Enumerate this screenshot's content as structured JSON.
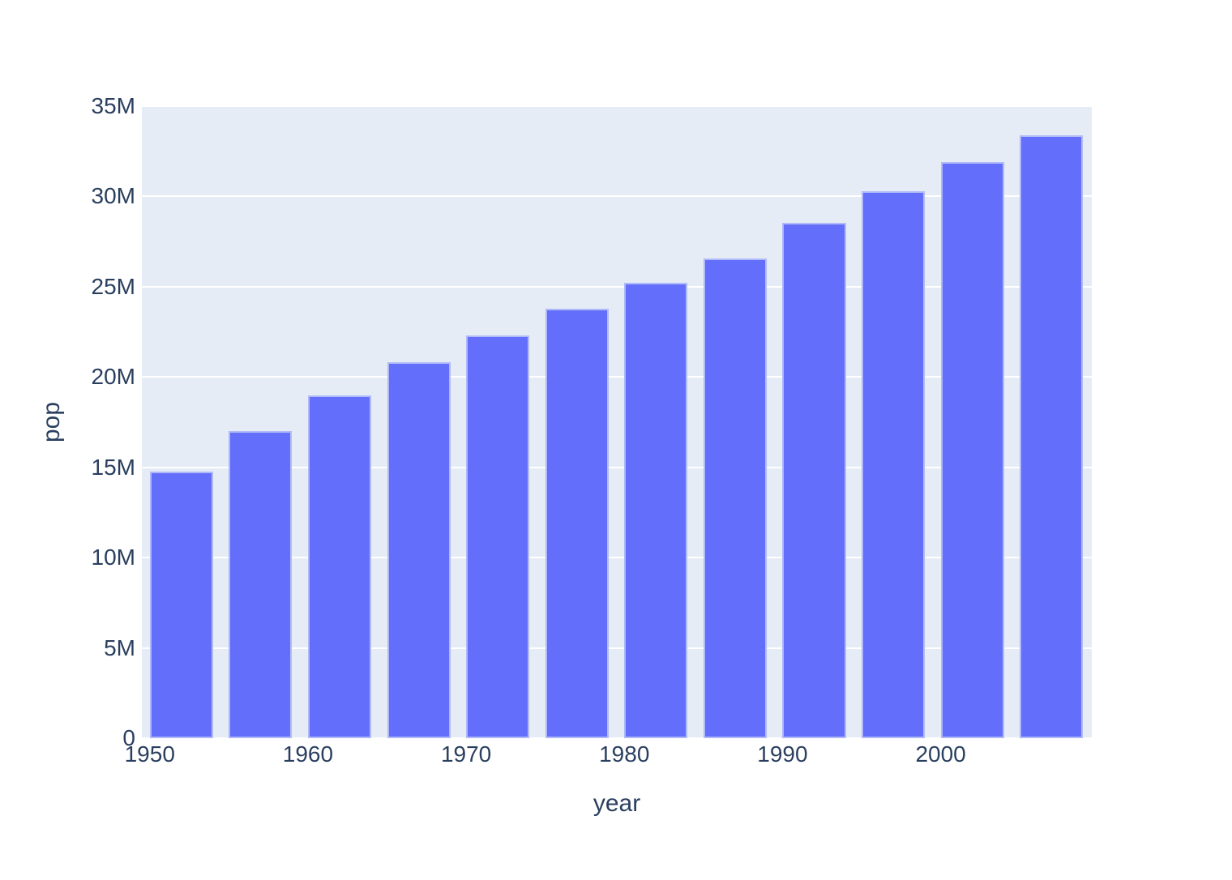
{
  "chart_data": {
    "type": "bar",
    "title": "",
    "xlabel": "year",
    "ylabel": "pop",
    "x": [
      1952,
      1957,
      1962,
      1967,
      1972,
      1977,
      1982,
      1987,
      1992,
      1997,
      2002,
      2007
    ],
    "values": [
      14785584,
      17010154,
      18985849,
      20819767,
      22284500,
      23796400,
      25201900,
      26549700,
      28523502,
      30305843,
      31902268,
      33390141
    ],
    "series_name": "pop",
    "xlim": [
      1949.5,
      2009.55
    ],
    "ylim": [
      0,
      35000000
    ],
    "bar_width_x_units": 4,
    "grid": true,
    "legend_position": "none",
    "yticks": [
      {
        "value": 0,
        "label": "0"
      },
      {
        "value": 5000000,
        "label": "5M"
      },
      {
        "value": 10000000,
        "label": "10M"
      },
      {
        "value": 15000000,
        "label": "15M"
      },
      {
        "value": 20000000,
        "label": "20M"
      },
      {
        "value": 25000000,
        "label": "25M"
      },
      {
        "value": 30000000,
        "label": "30M"
      },
      {
        "value": 35000000,
        "label": "35M"
      }
    ],
    "xticks": [
      {
        "value": 1950,
        "label": "1950"
      },
      {
        "value": 1960,
        "label": "1960"
      },
      {
        "value": 1970,
        "label": "1970"
      },
      {
        "value": 1980,
        "label": "1980"
      },
      {
        "value": 1990,
        "label": "1990"
      },
      {
        "value": 2000,
        "label": "2000"
      }
    ],
    "colors": {
      "bar": "#636efa",
      "plot_background": "#e5ecf6",
      "gridline": "#ffffff",
      "text": "#2a3f5f",
      "page_background": "#ffffff"
    }
  }
}
